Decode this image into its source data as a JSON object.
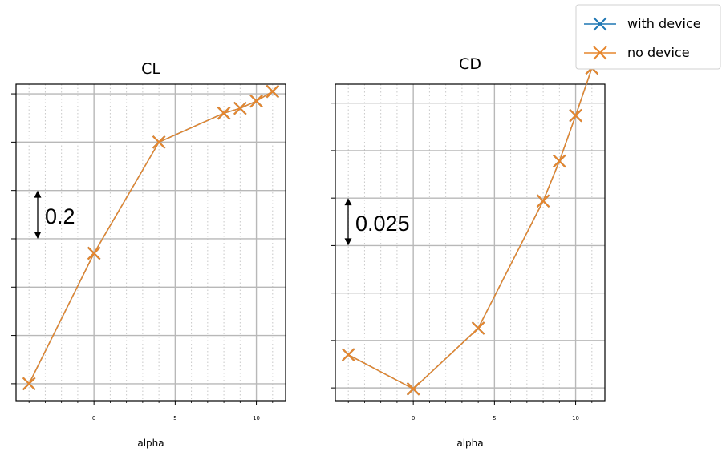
{
  "legend": {
    "entries": [
      {
        "label": "with device",
        "color": "#1f77b4"
      },
      {
        "label": "no device",
        "color": "#e6862d"
      }
    ]
  },
  "chart_data": [
    {
      "type": "line",
      "title": "CL",
      "xlabel": "alpha",
      "ylabel": "",
      "xlim": [
        -4.8,
        11.8
      ],
      "ylim": [
        -0.07,
        1.24
      ],
      "x_ticks": [
        0,
        5,
        10
      ],
      "y_ticks": [
        0.0,
        0.2,
        0.4,
        0.6,
        0.8,
        1.0,
        1.2
      ],
      "y_tick_labels_visible": false,
      "grid": true,
      "minor_grid": "dotted-vertical",
      "marker": "x",
      "annotation": {
        "text": "0.2",
        "span": [
          0.6,
          0.8
        ]
      },
      "series": [
        {
          "name": "with device",
          "x": [
            -4,
            0,
            4,
            8,
            9,
            10,
            11
          ],
          "y": [
            0.0,
            0.54,
            1.0,
            1.12,
            1.14,
            1.17,
            1.21
          ]
        },
        {
          "name": "no device",
          "x": [
            -4,
            0,
            4,
            8,
            9,
            10,
            11
          ],
          "y": [
            0.0,
            0.54,
            1.0,
            1.12,
            1.14,
            1.17,
            1.21
          ]
        }
      ]
    },
    {
      "type": "line",
      "title": "CD",
      "xlabel": "alpha",
      "ylabel": "",
      "xlim": [
        -4.8,
        11.8
      ],
      "ylim": [
        0.0058,
        0.1725
      ],
      "x_ticks": [
        0,
        5,
        10
      ],
      "y_ticks": [
        0.0125,
        0.0375,
        0.0625,
        0.0875,
        0.1125,
        0.1375,
        0.1625
      ],
      "y_tick_labels_visible": false,
      "grid": true,
      "minor_grid": "dotted-vertical",
      "marker": "x",
      "annotation": {
        "text": "0.025",
        "span": [
          0.0875,
          0.1125
        ]
      },
      "series": [
        {
          "name": "with device",
          "x": [
            -4,
            0,
            4,
            8,
            9,
            10,
            11
          ],
          "y": [
            0.03,
            0.012,
            0.044,
            0.111,
            0.132,
            0.156,
            0.181
          ]
        },
        {
          "name": "no device",
          "x": [
            -4,
            0,
            4,
            8,
            9,
            10,
            11
          ],
          "y": [
            0.03,
            0.012,
            0.044,
            0.111,
            0.132,
            0.156,
            0.181
          ]
        }
      ]
    }
  ]
}
